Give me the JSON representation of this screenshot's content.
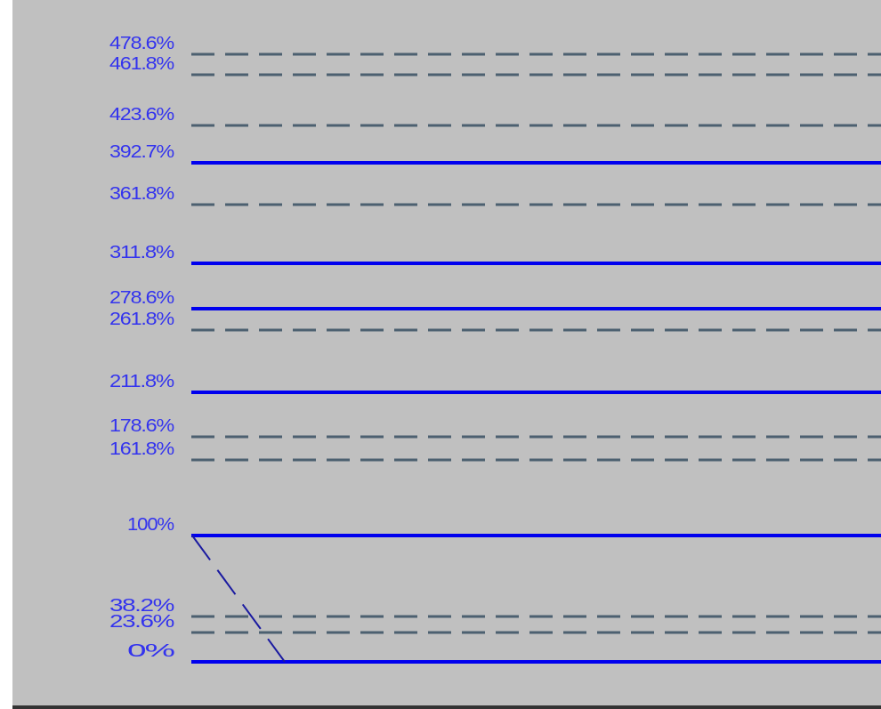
{
  "chart_data": {
    "type": "line",
    "title": "",
    "xlabel": "",
    "ylabel": "",
    "grid": false,
    "legend": "none",
    "colors": {
      "background": "#c0c0c0",
      "solid_level": "#0000ee",
      "dashed_level": "#4c6070",
      "label": "#3333ee",
      "trend": "#1a1aa0",
      "frame_left": "#ffffff",
      "frame_bottom": "#333333"
    },
    "levels": [
      {
        "label": "478.6%",
        "value": 478.6,
        "style": "dashed"
      },
      {
        "label": "461.8%",
        "value": 461.8,
        "style": "dashed"
      },
      {
        "label": "423.6%",
        "value": 423.6,
        "style": "dashed"
      },
      {
        "label": "392.7%",
        "value": 392.7,
        "style": "solid"
      },
      {
        "label": "361.8%",
        "value": 361.8,
        "style": "dashed"
      },
      {
        "label": "311.8%",
        "value": 311.8,
        "style": "solid"
      },
      {
        "label": "278.6%",
        "value": 278.6,
        "style": "solid"
      },
      {
        "label": "261.8%",
        "value": 261.8,
        "style": "dashed"
      },
      {
        "label": "211.8%",
        "value": 211.8,
        "style": "solid"
      },
      {
        "label": "178.6%",
        "value": 178.6,
        "style": "dashed"
      },
      {
        "label": "161.8%",
        "value": 161.8,
        "style": "dashed"
      },
      {
        "label": "100%",
        "value": 100,
        "style": "solid"
      },
      {
        "label": "38.2%",
        "value": 38.2,
        "style": "dashed"
      },
      {
        "label": "23.6%",
        "value": 23.6,
        "style": "dashed"
      },
      {
        "label": "0%",
        "value": 0,
        "style": "solid"
      }
    ],
    "trendline": {
      "from": 100,
      "to": 0,
      "style": "dashed"
    }
  }
}
